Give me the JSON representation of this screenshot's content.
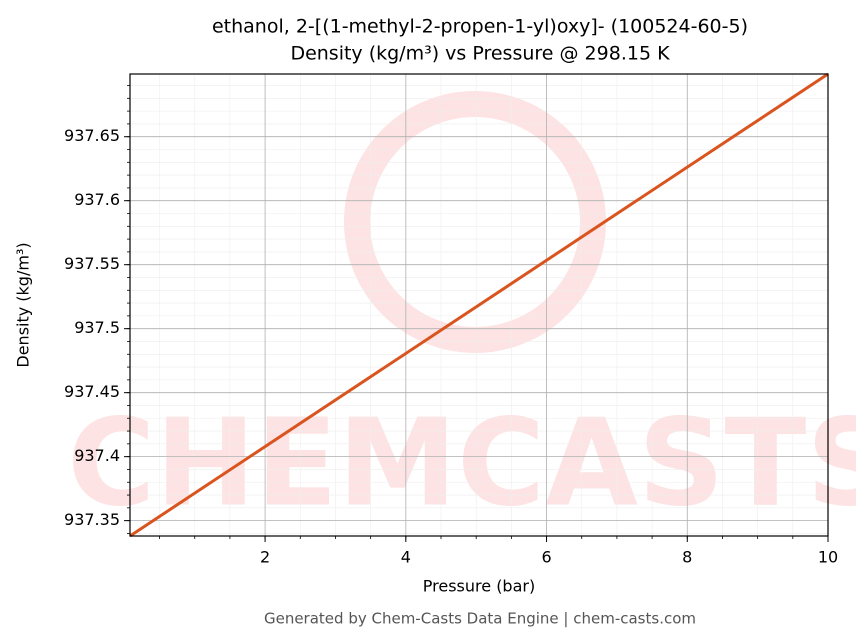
{
  "chart_data": {
    "type": "line",
    "title": "ethanol, 2-[(1-methyl-2-propen-1-yl)oxy]- (100524-60-5)",
    "subtitle": "Density (kg/m³) vs Pressure @ 298.15 K",
    "x_label": "Pressure (bar)",
    "y_label": "Density (kg/m³)",
    "watermark": "CHEMCASTS",
    "footer": "Generated by Chem-Casts Data Engine | chem-casts.com",
    "x": [
      0.08,
      10
    ],
    "series": [
      {
        "name": "Density",
        "color": "#d9541e",
        "values": [
          937.338,
          937.699
        ]
      }
    ],
    "xlim": [
      0.08,
      10
    ],
    "ylim": [
      937.338,
      937.699
    ],
    "xticks": [
      2,
      4,
      6,
      8,
      10
    ],
    "yticks": [
      937.35,
      937.4,
      937.45,
      937.5,
      937.55,
      937.6,
      937.65
    ],
    "grid": true
  }
}
